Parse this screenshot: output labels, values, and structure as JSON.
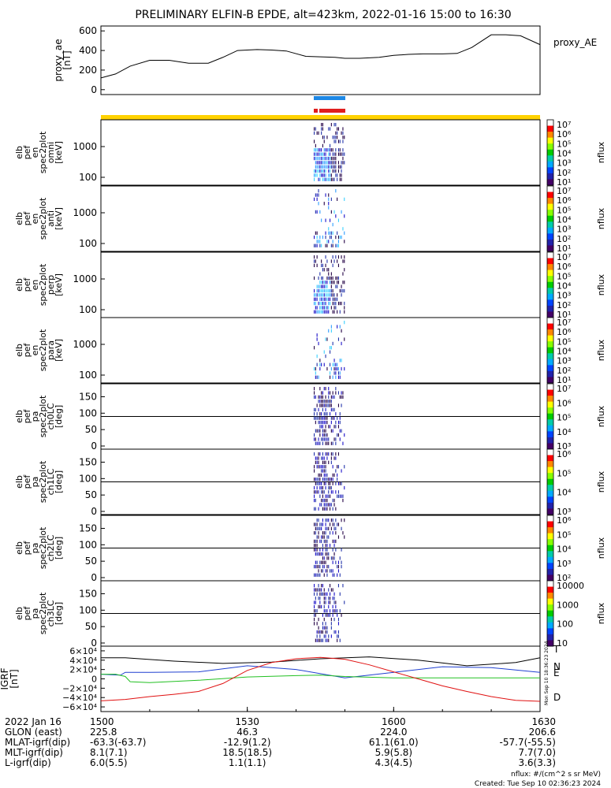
{
  "title": "PRELIMINARY ELFIN-B EPDE, alt=423km, 2022-01-16 15:00 to 16:30",
  "colors": {
    "bar_yellow": "#ffd200",
    "bar_blue": "#1e88e5",
    "bar_red": "#e01e1e",
    "axis": "#000000",
    "grf_total": "#000000",
    "grf_n": "#1f3fd0",
    "grf_e": "#22c022",
    "grf_d": "#e01010"
  },
  "chart_data": [
    {
      "type": "line",
      "name": "proxy_ae",
      "ylabel_lines": [
        "proxy_ae",
        "[nT]"
      ],
      "legend": "proxy_AE",
      "ylim": [
        -50,
        650
      ],
      "yticks": [
        0,
        200,
        400,
        600
      ],
      "xlim": [
        0,
        90
      ],
      "x": [
        0,
        3,
        6,
        10,
        14,
        18,
        22,
        25,
        28,
        32,
        35,
        38,
        42,
        45,
        48,
        50,
        53,
        57,
        60,
        63,
        66,
        70,
        73,
        76,
        80,
        83,
        86,
        90
      ],
      "values": [
        120,
        160,
        240,
        300,
        300,
        270,
        270,
        330,
        400,
        410,
        405,
        395,
        340,
        335,
        330,
        320,
        320,
        330,
        350,
        360,
        365,
        365,
        370,
        430,
        560,
        560,
        550,
        460
      ]
    },
    {
      "type": "heatmap",
      "name": "omni",
      "ylabel_lines": [
        "elb",
        "pef",
        "en",
        "spec2plot",
        "omni",
        "[keV]"
      ],
      "yticks": [
        "100",
        "1000"
      ],
      "cbar_ticks": [
        "10⁷",
        "10⁶",
        "10⁵",
        "10⁴",
        "10³",
        "10²",
        "10¹"
      ],
      "cbar_label": "nflux",
      "intensity": "high"
    },
    {
      "type": "heatmap",
      "name": "anti",
      "ylabel_lines": [
        "elb",
        "pef",
        "en",
        "spec2plot",
        "anti",
        "[keV]"
      ],
      "yticks": [
        "100",
        "1000"
      ],
      "cbar_ticks": [
        "10⁷",
        "10⁶",
        "10⁵",
        "10⁴",
        "10³",
        "10²",
        "10¹"
      ],
      "cbar_label": "nflux",
      "intensity": "low"
    },
    {
      "type": "heatmap",
      "name": "perp",
      "ylabel_lines": [
        "elb",
        "pef",
        "en",
        "spec2plot",
        "perp",
        "[keV]"
      ],
      "yticks": [
        "100",
        "1000"
      ],
      "cbar_ticks": [
        "10⁷",
        "10⁶",
        "10⁵",
        "10⁴",
        "10³",
        "10²",
        "10¹"
      ],
      "cbar_label": "nflux",
      "intensity": "high"
    },
    {
      "type": "heatmap",
      "name": "para",
      "ylabel_lines": [
        "elb",
        "pef",
        "en",
        "spec2plot",
        "para",
        "[keV]"
      ],
      "yticks": [
        "100",
        "1000"
      ],
      "cbar_ticks": [
        "10⁷",
        "10⁶",
        "10⁵",
        "10⁴",
        "10³",
        "10²",
        "10¹"
      ],
      "cbar_label": "nflux",
      "intensity": "low"
    },
    {
      "type": "heatmap",
      "name": "ch0LC",
      "ylabel_lines": [
        "elb",
        "pef",
        "pa",
        "spec2plot",
        "ch0LC",
        "[deg]"
      ],
      "yticks": [
        "0",
        "50",
        "100",
        "150"
      ],
      "cbar_ticks": [
        "10⁷",
        "10⁶",
        "10⁵",
        "10⁴",
        "10³"
      ],
      "cbar_label": "nflux",
      "intensity": "pa"
    },
    {
      "type": "heatmap",
      "name": "ch1LC",
      "ylabel_lines": [
        "elb",
        "pef",
        "pa",
        "spec2plot",
        "ch1LC",
        "[deg]"
      ],
      "yticks": [
        "0",
        "50",
        "100",
        "150"
      ],
      "cbar_ticks": [
        "10⁶",
        "10⁵",
        "10⁴",
        "10³"
      ],
      "cbar_label": "nflux",
      "intensity": "pa"
    },
    {
      "type": "heatmap",
      "name": "ch2LC",
      "ylabel_lines": [
        "elb",
        "pef",
        "pa",
        "spec2plot",
        "ch2LC",
        "[deg]"
      ],
      "yticks": [
        "0",
        "50",
        "100",
        "150"
      ],
      "cbar_ticks": [
        "10⁶",
        "10⁵",
        "10⁴",
        "10³",
        "10²"
      ],
      "cbar_label": "nflux",
      "intensity": "pa"
    },
    {
      "type": "heatmap",
      "name": "ch3LC",
      "ylabel_lines": [
        "elb",
        "pef",
        "pa",
        "spec2plot",
        "ch3LC",
        "[deg]"
      ],
      "yticks": [
        "0",
        "50",
        "100",
        "150"
      ],
      "cbar_ticks": [
        "10000",
        "1000",
        "100",
        "10"
      ],
      "cbar_label": "nflux",
      "intensity": "pa"
    },
    {
      "type": "line",
      "name": "IGRF",
      "ylabel_lines": [
        "IGRF",
        "[nT]"
      ],
      "ylim": [
        -70000,
        70000
      ],
      "yticks": [
        {
          "v": 60000,
          "label": "6×10⁴"
        },
        {
          "v": 40000,
          "label": "4×10⁴"
        },
        {
          "v": 20000,
          "label": "2×10⁴"
        },
        {
          "v": 0,
          "label": "0"
        },
        {
          "v": -20000,
          "label": "−2×10⁴"
        },
        {
          "v": -40000,
          "label": "−4×10⁴"
        },
        {
          "v": -60000,
          "label": "−6×10⁴"
        }
      ],
      "xlim": [
        0,
        90
      ],
      "series": [
        {
          "name": "T",
          "x": [
            0,
            5,
            15,
            25,
            35,
            45,
            55,
            65,
            75,
            85,
            90
          ],
          "values": [
            45000,
            45000,
            38000,
            33000,
            36000,
            43000,
            47000,
            40000,
            28000,
            35000,
            45000
          ]
        },
        {
          "name": "N",
          "x": [
            0,
            2,
            4,
            5,
            10,
            20,
            30,
            40,
            50,
            60,
            70,
            80,
            90
          ],
          "values": [
            10000,
            9000,
            8000,
            14000,
            14000,
            15000,
            28000,
            20000,
            2000,
            14000,
            26000,
            24000,
            14000
          ]
        },
        {
          "name": "E",
          "x": [
            0,
            3,
            5,
            6,
            10,
            20,
            30,
            40,
            45,
            50,
            60,
            90
          ],
          "values": [
            10000,
            10000,
            5000,
            -6000,
            -8000,
            -3000,
            4000,
            7000,
            8000,
            5000,
            2000,
            2000
          ]
        },
        {
          "name": "D",
          "x": [
            0,
            5,
            10,
            15,
            20,
            25,
            30,
            35,
            40,
            45,
            50,
            55,
            60,
            65,
            70,
            75,
            80,
            85,
            90
          ],
          "values": [
            -47000,
            -44000,
            -38000,
            -33000,
            -27000,
            -10000,
            18000,
            35000,
            43000,
            46000,
            42000,
            30000,
            15000,
            0,
            -15000,
            -27000,
            -38000,
            -46000,
            -48000
          ]
        }
      ],
      "curve_labels": [
        "T",
        "N",
        "E",
        "D"
      ]
    }
  ],
  "xaxis": {
    "ticks": [
      "1500",
      "1530",
      "1600",
      "1630"
    ],
    "rows": [
      {
        "label": "2022 Jan 16",
        "values": [
          "1500",
          "1530",
          "1600",
          "1630"
        ]
      },
      {
        "label": "GLON (east)",
        "values": [
          "225.8",
          "46.3",
          "224.0",
          "206.6"
        ]
      },
      {
        "label": "MLAT-igrf(dip)",
        "values": [
          "-63.3(-63.7)",
          "-12.9(1.2)",
          "61.1(61.0)",
          "-57.7(-55.5)"
        ]
      },
      {
        "label": "MLT-igrf(dip)",
        "values": [
          "8.1(7.1)",
          "18.5(18.5)",
          "5.9(5.8)",
          "7.7(7.0)"
        ]
      },
      {
        "label": "L-igrf(dip)",
        "values": [
          "6.0(5.5)",
          "1.1(1.1)",
          "4.3(4.5)",
          "3.6(3.3)"
        ]
      }
    ]
  },
  "footer": {
    "units": "nflux: #/(cm^2 s sr MeV)",
    "created": "Created: Tue Sep 10 02:36:23 2024",
    "side_stamp": "Mon Sep 10 18:36:23 2024"
  }
}
